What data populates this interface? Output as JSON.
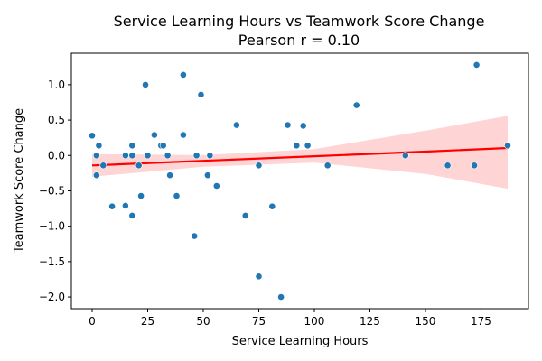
{
  "chart_data": {
    "type": "scatter",
    "title": "Service Learning Hours vs Teamwork Score Change",
    "subtitle": "Pearson r = 0.10",
    "xlabel": "Service Learning Hours",
    "ylabel": "Teamwork Score Change",
    "xlim": [
      -9.35,
      196.35
    ],
    "ylim": [
      -2.165,
      1.445
    ],
    "xticks": [
      0,
      25,
      50,
      75,
      100,
      125,
      150,
      175
    ],
    "xtick_labels": [
      "0",
      "25",
      "50",
      "75",
      "100",
      "125",
      "150",
      "175"
    ],
    "yticks": [
      -2.0,
      -1.5,
      -1.0,
      -0.5,
      0.0,
      0.5,
      1.0
    ],
    "ytick_labels": [
      "−2.0",
      "−1.5",
      "−1.0",
      "−0.5",
      "0.0",
      "0.5",
      "1.0"
    ],
    "grid": false,
    "colors": {
      "points": "#1f77b4",
      "regression_line": "#ff0000",
      "confidence_band": "#ffcccc"
    },
    "points": [
      {
        "x": 0,
        "y": 0.28
      },
      {
        "x": 2,
        "y": 0.0
      },
      {
        "x": 2,
        "y": -0.28
      },
      {
        "x": 3,
        "y": 0.14
      },
      {
        "x": 5,
        "y": -0.14
      },
      {
        "x": 9,
        "y": -0.72
      },
      {
        "x": 15,
        "y": 0.0
      },
      {
        "x": 15,
        "y": -0.71
      },
      {
        "x": 18,
        "y": 0.14
      },
      {
        "x": 18,
        "y": 0.0
      },
      {
        "x": 18,
        "y": -0.85
      },
      {
        "x": 21,
        "y": -0.14
      },
      {
        "x": 22,
        "y": -0.57
      },
      {
        "x": 24,
        "y": 1.0
      },
      {
        "x": 25,
        "y": 0.0
      },
      {
        "x": 28,
        "y": 0.29
      },
      {
        "x": 31,
        "y": 0.14
      },
      {
        "x": 32,
        "y": 0.14
      },
      {
        "x": 34,
        "y": 0.0
      },
      {
        "x": 35,
        "y": -0.28
      },
      {
        "x": 38,
        "y": -0.57
      },
      {
        "x": 41,
        "y": 1.14
      },
      {
        "x": 41,
        "y": 0.29
      },
      {
        "x": 46,
        "y": -1.14
      },
      {
        "x": 47,
        "y": 0.0
      },
      {
        "x": 49,
        "y": 0.86
      },
      {
        "x": 52,
        "y": -0.28
      },
      {
        "x": 53,
        "y": 0.0
      },
      {
        "x": 56,
        "y": -0.43
      },
      {
        "x": 65,
        "y": 0.43
      },
      {
        "x": 69,
        "y": -0.85
      },
      {
        "x": 75,
        "y": -0.14
      },
      {
        "x": 75,
        "y": -1.71
      },
      {
        "x": 81,
        "y": -0.72
      },
      {
        "x": 85,
        "y": -2.0
      },
      {
        "x": 88,
        "y": 0.43
      },
      {
        "x": 92,
        "y": 0.14
      },
      {
        "x": 95,
        "y": 0.42
      },
      {
        "x": 97,
        "y": 0.14
      },
      {
        "x": 106,
        "y": -0.14
      },
      {
        "x": 119,
        "y": 0.71
      },
      {
        "x": 141,
        "y": 0.0
      },
      {
        "x": 160,
        "y": -0.14
      },
      {
        "x": 172,
        "y": -0.14
      },
      {
        "x": 173,
        "y": 1.28
      },
      {
        "x": 187,
        "y": 0.14
      }
    ],
    "regression": {
      "x": [
        0,
        50,
        100,
        150,
        187
      ],
      "y": [
        -0.14,
        -0.075,
        -0.01,
        0.055,
        0.105
      ],
      "ci_lower": [
        -0.3,
        -0.16,
        -0.1,
        -0.26,
        -0.47
      ],
      "ci_upper": [
        0.02,
        0.005,
        0.09,
        0.35,
        0.56
      ]
    }
  }
}
